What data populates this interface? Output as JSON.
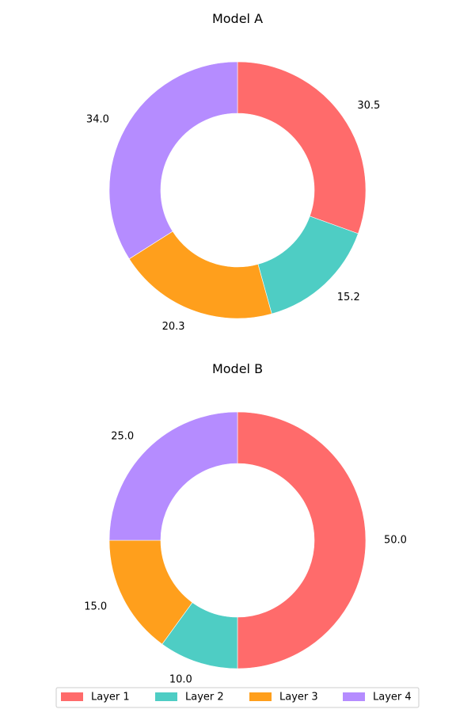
{
  "chart_data": [
    {
      "type": "pie",
      "subtype": "donut",
      "title": "Model A",
      "categories": [
        "Layer 1",
        "Layer 2",
        "Layer 3",
        "Layer 4"
      ],
      "values": [
        30.5,
        15.2,
        20.3,
        34.0
      ],
      "labels": [
        "30.5",
        "15.2",
        "20.3",
        "34.0"
      ],
      "colors": [
        "#ff6b6b",
        "#4ecdc4",
        "#ff9f1c",
        "#b58cff"
      ],
      "start": "12 o'clock",
      "direction": "clockwise"
    },
    {
      "type": "pie",
      "subtype": "donut",
      "title": "Model B",
      "categories": [
        "Layer 1",
        "Layer 2",
        "Layer 3",
        "Layer 4"
      ],
      "values": [
        50.0,
        10.0,
        15.0,
        25.0
      ],
      "labels": [
        "50.0",
        "10.0",
        "15.0",
        "25.0"
      ],
      "colors": [
        "#ff6b6b",
        "#4ecdc4",
        "#ff9f1c",
        "#b58cff"
      ],
      "start": "12 o'clock",
      "direction": "clockwise"
    }
  ],
  "legend": {
    "placement": "bottom-center",
    "items": [
      {
        "label": "Layer 1",
        "color": "#ff6b6b"
      },
      {
        "label": "Layer 2",
        "color": "#4ecdc4"
      },
      {
        "label": "Layer 3",
        "color": "#ff9f1c"
      },
      {
        "label": "Layer 4",
        "color": "#b58cff"
      }
    ]
  }
}
